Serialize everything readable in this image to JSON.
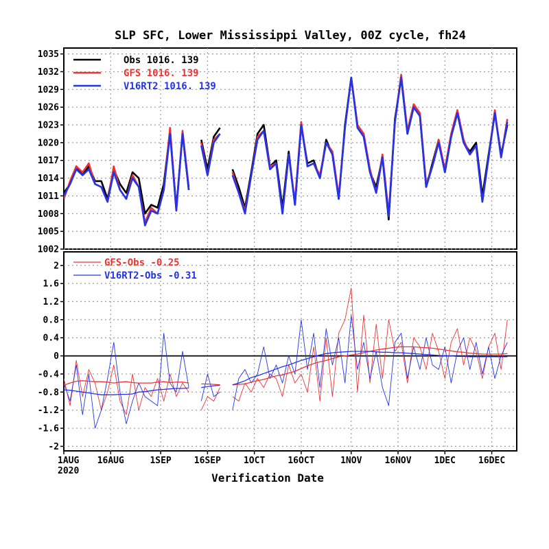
{
  "title": "SLP SFC, Lower Mississippi Valley, 00Z cycle, fh24",
  "xlabel": "Verification Date",
  "xticks": [
    "1AUG",
    "16AUG",
    "1SEP",
    "16SEP",
    "1OCT",
    "16OCT",
    "1NOV",
    "16NOV",
    "1DEC",
    "16DEC"
  ],
  "xtick_year": "2020",
  "colors": {
    "obs": "#000000",
    "gfs": "#ee3333",
    "v16": "#2233ee"
  },
  "chart_data": [
    {
      "type": "line",
      "panel": "top",
      "ylim": [
        1002,
        1036
      ],
      "yticks": [
        1002,
        1005,
        1008,
        1011,
        1014,
        1017,
        1020,
        1023,
        1026,
        1029,
        1032,
        1035
      ],
      "legend": [
        {
          "key": "obs",
          "label": "Obs   1016.  139"
        },
        {
          "key": "gfs",
          "label": "GFS  1016.  139"
        },
        {
          "key": "v16",
          "label": "V16RT2  1016.  139"
        }
      ],
      "x_dates": [
        "2020-08-01",
        "2020-08-03",
        "2020-08-05",
        "2020-08-07",
        "2020-08-09",
        "2020-08-11",
        "2020-08-13",
        "2020-08-15",
        "2020-08-17",
        "2020-08-19",
        "2020-08-21",
        "2020-08-23",
        "2020-08-25",
        "2020-08-27",
        "2020-08-29",
        "2020-08-31",
        "2020-09-02",
        "2020-09-04",
        "2020-09-06",
        "2020-09-08",
        "2020-09-10",
        "2020-09-12",
        "2020-09-14",
        "2020-09-16",
        "2020-09-18",
        "2020-09-20",
        "2020-09-22",
        "2020-09-24",
        "2020-09-26",
        "2020-09-28",
        "2020-09-30",
        "2020-10-02",
        "2020-10-04",
        "2020-10-06",
        "2020-10-08",
        "2020-10-10",
        "2020-10-12",
        "2020-10-14",
        "2020-10-16",
        "2020-10-18",
        "2020-10-20",
        "2020-10-22",
        "2020-10-24",
        "2020-10-26",
        "2020-10-28",
        "2020-10-30",
        "2020-11-01",
        "2020-11-03",
        "2020-11-05",
        "2020-11-07",
        "2020-11-09",
        "2020-11-11",
        "2020-11-13",
        "2020-11-15",
        "2020-11-17",
        "2020-11-19",
        "2020-11-21",
        "2020-11-23",
        "2020-11-25",
        "2020-11-27",
        "2020-11-29",
        "2020-12-01",
        "2020-12-03",
        "2020-12-05",
        "2020-12-07",
        "2020-12-09",
        "2020-12-11",
        "2020-12-13",
        "2020-12-15",
        "2020-12-17",
        "2020-12-19",
        "2020-12-21"
      ],
      "series": [
        {
          "key": "obs",
          "name": "Obs",
          "values": [
            1011.5,
            1013.0,
            1016.0,
            1014.5,
            1016.0,
            1013.5,
            1013.5,
            1010.5,
            1015.5,
            1013.0,
            1011.5,
            1015.0,
            1014.0,
            1008.0,
            1009.5,
            1009.0,
            1013.0,
            1022.0,
            1009.0,
            1021.5,
            1012.0,
            null,
            1020.5,
            1015.5,
            1021.0,
            1022.5,
            null,
            1015.5,
            1012.5,
            1009.0,
            1015.0,
            1021.5,
            1023.0,
            1016.0,
            1017.0,
            1009.0,
            1018.5,
            1009.5,
            1023.0,
            1016.5,
            1017.0,
            1014.0,
            1020.5,
            1018.0,
            1010.5,
            1023.0,
            1031.0,
            1023.0,
            1021.0,
            1015.0,
            1012.5,
            1017.5,
            1007.0,
            1024.0,
            1031.0,
            1021.5,
            1026.0,
            1024.5,
            1012.5,
            1016.5,
            1020.5,
            1015.0,
            1021.0,
            1025.0,
            1020.0,
            1018.5,
            1020.0,
            1011.0,
            1018.0,
            1025.0,
            1018.0,
            1023.0
          ]
        },
        {
          "key": "gfs",
          "name": "GFS",
          "values": [
            1010.5,
            1013.5,
            1016.0,
            1015.0,
            1016.5,
            1013.0,
            1012.5,
            1010.0,
            1016.0,
            1012.0,
            1010.5,
            1014.5,
            1012.5,
            1006.5,
            1009.0,
            1008.0,
            1012.0,
            1022.5,
            1008.5,
            1022.0,
            1012.5,
            null,
            1020.0,
            1014.5,
            1020.5,
            1021.5,
            null,
            1015.0,
            1011.5,
            1008.5,
            1014.5,
            1021.0,
            1022.0,
            1016.0,
            1016.5,
            1008.0,
            1018.0,
            1010.0,
            1023.5,
            1016.0,
            1016.5,
            1014.5,
            1020.0,
            1018.5,
            1011.0,
            1022.5,
            1031.0,
            1023.0,
            1021.5,
            1015.5,
            1011.5,
            1018.0,
            1008.0,
            1023.5,
            1031.5,
            1022.0,
            1026.5,
            1025.0,
            1013.0,
            1016.0,
            1020.5,
            1015.5,
            1021.5,
            1025.5,
            1020.5,
            1018.0,
            1019.5,
            1010.0,
            1017.5,
            1025.5,
            1017.5,
            1024.0
          ]
        },
        {
          "key": "v16",
          "name": "V16RT2",
          "values": [
            1011.0,
            1013.0,
            1015.5,
            1014.5,
            1015.5,
            1013.0,
            1012.5,
            1010.0,
            1015.0,
            1012.0,
            1010.5,
            1014.0,
            1012.5,
            1006.0,
            1008.5,
            1008.0,
            1012.0,
            1021.5,
            1008.5,
            1021.5,
            1012.0,
            null,
            1019.5,
            1014.5,
            1020.0,
            1021.5,
            null,
            1014.5,
            1011.5,
            1008.0,
            1014.5,
            1020.5,
            1022.0,
            1015.5,
            1016.5,
            1008.0,
            1018.0,
            1009.5,
            1023.0,
            1016.0,
            1016.5,
            1014.0,
            1020.0,
            1018.0,
            1010.5,
            1022.5,
            1031.0,
            1022.5,
            1021.0,
            1015.0,
            1011.5,
            1017.5,
            1007.5,
            1023.5,
            1031.0,
            1021.5,
            1026.0,
            1024.5,
            1012.5,
            1016.0,
            1020.0,
            1015.0,
            1021.0,
            1025.0,
            1020.0,
            1018.0,
            1019.5,
            1010.0,
            1017.5,
            1025.0,
            1017.5,
            1023.5
          ]
        }
      ]
    },
    {
      "type": "line",
      "panel": "bottom",
      "ylim": [
        -2.1,
        2.3
      ],
      "yticks": [
        -2,
        -1.6,
        -1.2,
        -0.8,
        -0.4,
        0,
        0.4,
        0.8,
        1.2,
        1.6,
        2
      ],
      "ytick_labels": [
        "-2",
        "-1.6",
        "-1.2",
        "-0.8",
        "-0.4",
        "0",
        "0.4",
        "0.8",
        "1.2",
        "1.6",
        "2"
      ],
      "legend": [
        {
          "key": "gfs",
          "label": "GFS-Obs -0.25"
        },
        {
          "key": "v16",
          "label": "V16RT2-Obs -0.31"
        }
      ],
      "x_dates": [
        "2020-08-01",
        "2020-08-03",
        "2020-08-05",
        "2020-08-07",
        "2020-08-09",
        "2020-08-11",
        "2020-08-13",
        "2020-08-15",
        "2020-08-17",
        "2020-08-19",
        "2020-08-21",
        "2020-08-23",
        "2020-08-25",
        "2020-08-27",
        "2020-08-29",
        "2020-08-31",
        "2020-09-02",
        "2020-09-04",
        "2020-09-06",
        "2020-09-08",
        "2020-09-10",
        "2020-09-12",
        "2020-09-14",
        "2020-09-16",
        "2020-09-18",
        "2020-09-20",
        "2020-09-22",
        "2020-09-24",
        "2020-09-26",
        "2020-09-28",
        "2020-09-30",
        "2020-10-02",
        "2020-10-04",
        "2020-10-06",
        "2020-10-08",
        "2020-10-10",
        "2020-10-12",
        "2020-10-14",
        "2020-10-16",
        "2020-10-18",
        "2020-10-20",
        "2020-10-22",
        "2020-10-24",
        "2020-10-26",
        "2020-10-28",
        "2020-10-30",
        "2020-11-01",
        "2020-11-03",
        "2020-11-05",
        "2020-11-07",
        "2020-11-09",
        "2020-11-11",
        "2020-11-13",
        "2020-11-15",
        "2020-11-17",
        "2020-11-19",
        "2020-11-21",
        "2020-11-23",
        "2020-11-25",
        "2020-11-27",
        "2020-11-29",
        "2020-12-01",
        "2020-12-03",
        "2020-12-05",
        "2020-12-07",
        "2020-12-09",
        "2020-12-11",
        "2020-12-13",
        "2020-12-15",
        "2020-12-17",
        "2020-12-19",
        "2020-12-21"
      ],
      "series": [
        {
          "key": "gfs",
          "name": "GFS-Obs",
          "values": [
            -0.5,
            -1.1,
            -0.1,
            -0.9,
            -0.3,
            -0.6,
            -1.2,
            -0.8,
            -0.2,
            -1.0,
            -1.3,
            -0.4,
            -1.2,
            -0.7,
            -0.9,
            -0.5,
            -1.0,
            -0.4,
            -0.9,
            -0.6,
            -0.8,
            null,
            -1.2,
            -0.9,
            -1.0,
            -0.7,
            null,
            -0.9,
            -1.0,
            -0.6,
            -0.8,
            -0.5,
            -0.7,
            -0.4,
            -0.5,
            -0.9,
            -0.2,
            -0.6,
            -0.4,
            -0.8,
            0.2,
            -1.0,
            0.4,
            -0.9,
            0.5,
            0.8,
            1.5,
            -0.8,
            0.9,
            -0.6,
            0.7,
            -0.5,
            0.8,
            0.1,
            0.3,
            -0.6,
            0.4,
            0.2,
            -0.3,
            0.5,
            0.1,
            -0.5,
            0.3,
            0.6,
            -0.2,
            0.4,
            0.1,
            -0.5,
            0.2,
            0.5,
            -0.3,
            0.8
          ]
        },
        {
          "key": "v16",
          "name": "V16RT2-Obs",
          "values": [
            -0.6,
            -1.0,
            -0.2,
            -1.3,
            -0.4,
            -1.6,
            -1.2,
            -0.5,
            0.3,
            -0.8,
            -1.5,
            -1.0,
            -0.6,
            -0.9,
            -1.0,
            -1.1,
            0.5,
            -0.6,
            -0.8,
            0.1,
            -0.7,
            null,
            -1.0,
            -0.4,
            -0.9,
            -0.8,
            null,
            -1.2,
            -0.5,
            -0.3,
            -0.6,
            -0.4,
            0.2,
            -0.5,
            -0.2,
            -0.6,
            0.0,
            -0.4,
            0.8,
            -0.3,
            0.5,
            -0.7,
            0.6,
            -0.2,
            0.4,
            -0.6,
            0.9,
            -0.3,
            0.3,
            -0.5,
            0.1,
            -0.7,
            -1.1,
            0.3,
            0.5,
            -0.5,
            0.2,
            -0.3,
            0.4,
            -0.2,
            -0.3,
            0.2,
            -0.6,
            0.1,
            0.4,
            -0.3,
            0.3,
            -0.4,
            0.2,
            -0.5,
            0.0,
            0.3
          ]
        },
        {
          "key": "gfs",
          "name": "GFS-Obs mean",
          "values": [
            -0.65,
            -0.6,
            -0.56,
            -0.55,
            -0.56,
            -0.57,
            -0.57,
            -0.58,
            -0.6,
            -0.58,
            -0.57,
            -0.59,
            -0.6,
            -0.6,
            -0.6,
            -0.58,
            -0.57,
            -0.59,
            -0.58,
            -0.58,
            -0.6,
            null,
            -0.62,
            -0.62,
            -0.63,
            -0.64,
            null,
            -0.64,
            -0.63,
            -0.62,
            -0.58,
            -0.55,
            -0.52,
            -0.48,
            -0.44,
            -0.42,
            -0.38,
            -0.34,
            -0.28,
            -0.22,
            -0.17,
            -0.13,
            -0.1,
            -0.06,
            -0.02,
            0.0,
            0.02,
            0.04,
            0.07,
            0.1,
            0.13,
            0.15,
            0.17,
            0.19,
            0.2,
            0.2,
            0.2,
            0.19,
            0.18,
            0.17,
            0.15,
            0.13,
            0.11,
            0.09,
            0.08,
            0.06,
            0.05,
            0.04,
            0.04,
            0.04,
            0.04,
            0.05
          ]
        },
        {
          "key": "v16",
          "name": "V16RT2-Obs mean",
          "values": [
            -0.75,
            -0.76,
            -0.78,
            -0.8,
            -0.82,
            -0.84,
            -0.86,
            -0.86,
            -0.86,
            -0.85,
            -0.85,
            -0.84,
            -0.8,
            -0.79,
            -0.77,
            -0.75,
            -0.74,
            -0.73,
            -0.72,
            -0.72,
            -0.71,
            null,
            -0.7,
            -0.68,
            -0.66,
            -0.65,
            null,
            -0.64,
            -0.6,
            -0.55,
            -0.48,
            -0.44,
            -0.39,
            -0.34,
            -0.29,
            -0.24,
            -0.2,
            -0.15,
            -0.1,
            -0.06,
            -0.02,
            0.02,
            0.05,
            0.07,
            0.08,
            0.09,
            0.1,
            0.1,
            0.1,
            0.1,
            0.09,
            0.08,
            0.08,
            0.07,
            0.07,
            0.06,
            0.05,
            0.04,
            0.03,
            0.02,
            0.01,
            0.0,
            0.0,
            -0.01,
            -0.01,
            -0.02,
            -0.02,
            -0.02,
            -0.02,
            -0.02,
            -0.02,
            -0.02
          ]
        }
      ]
    }
  ]
}
